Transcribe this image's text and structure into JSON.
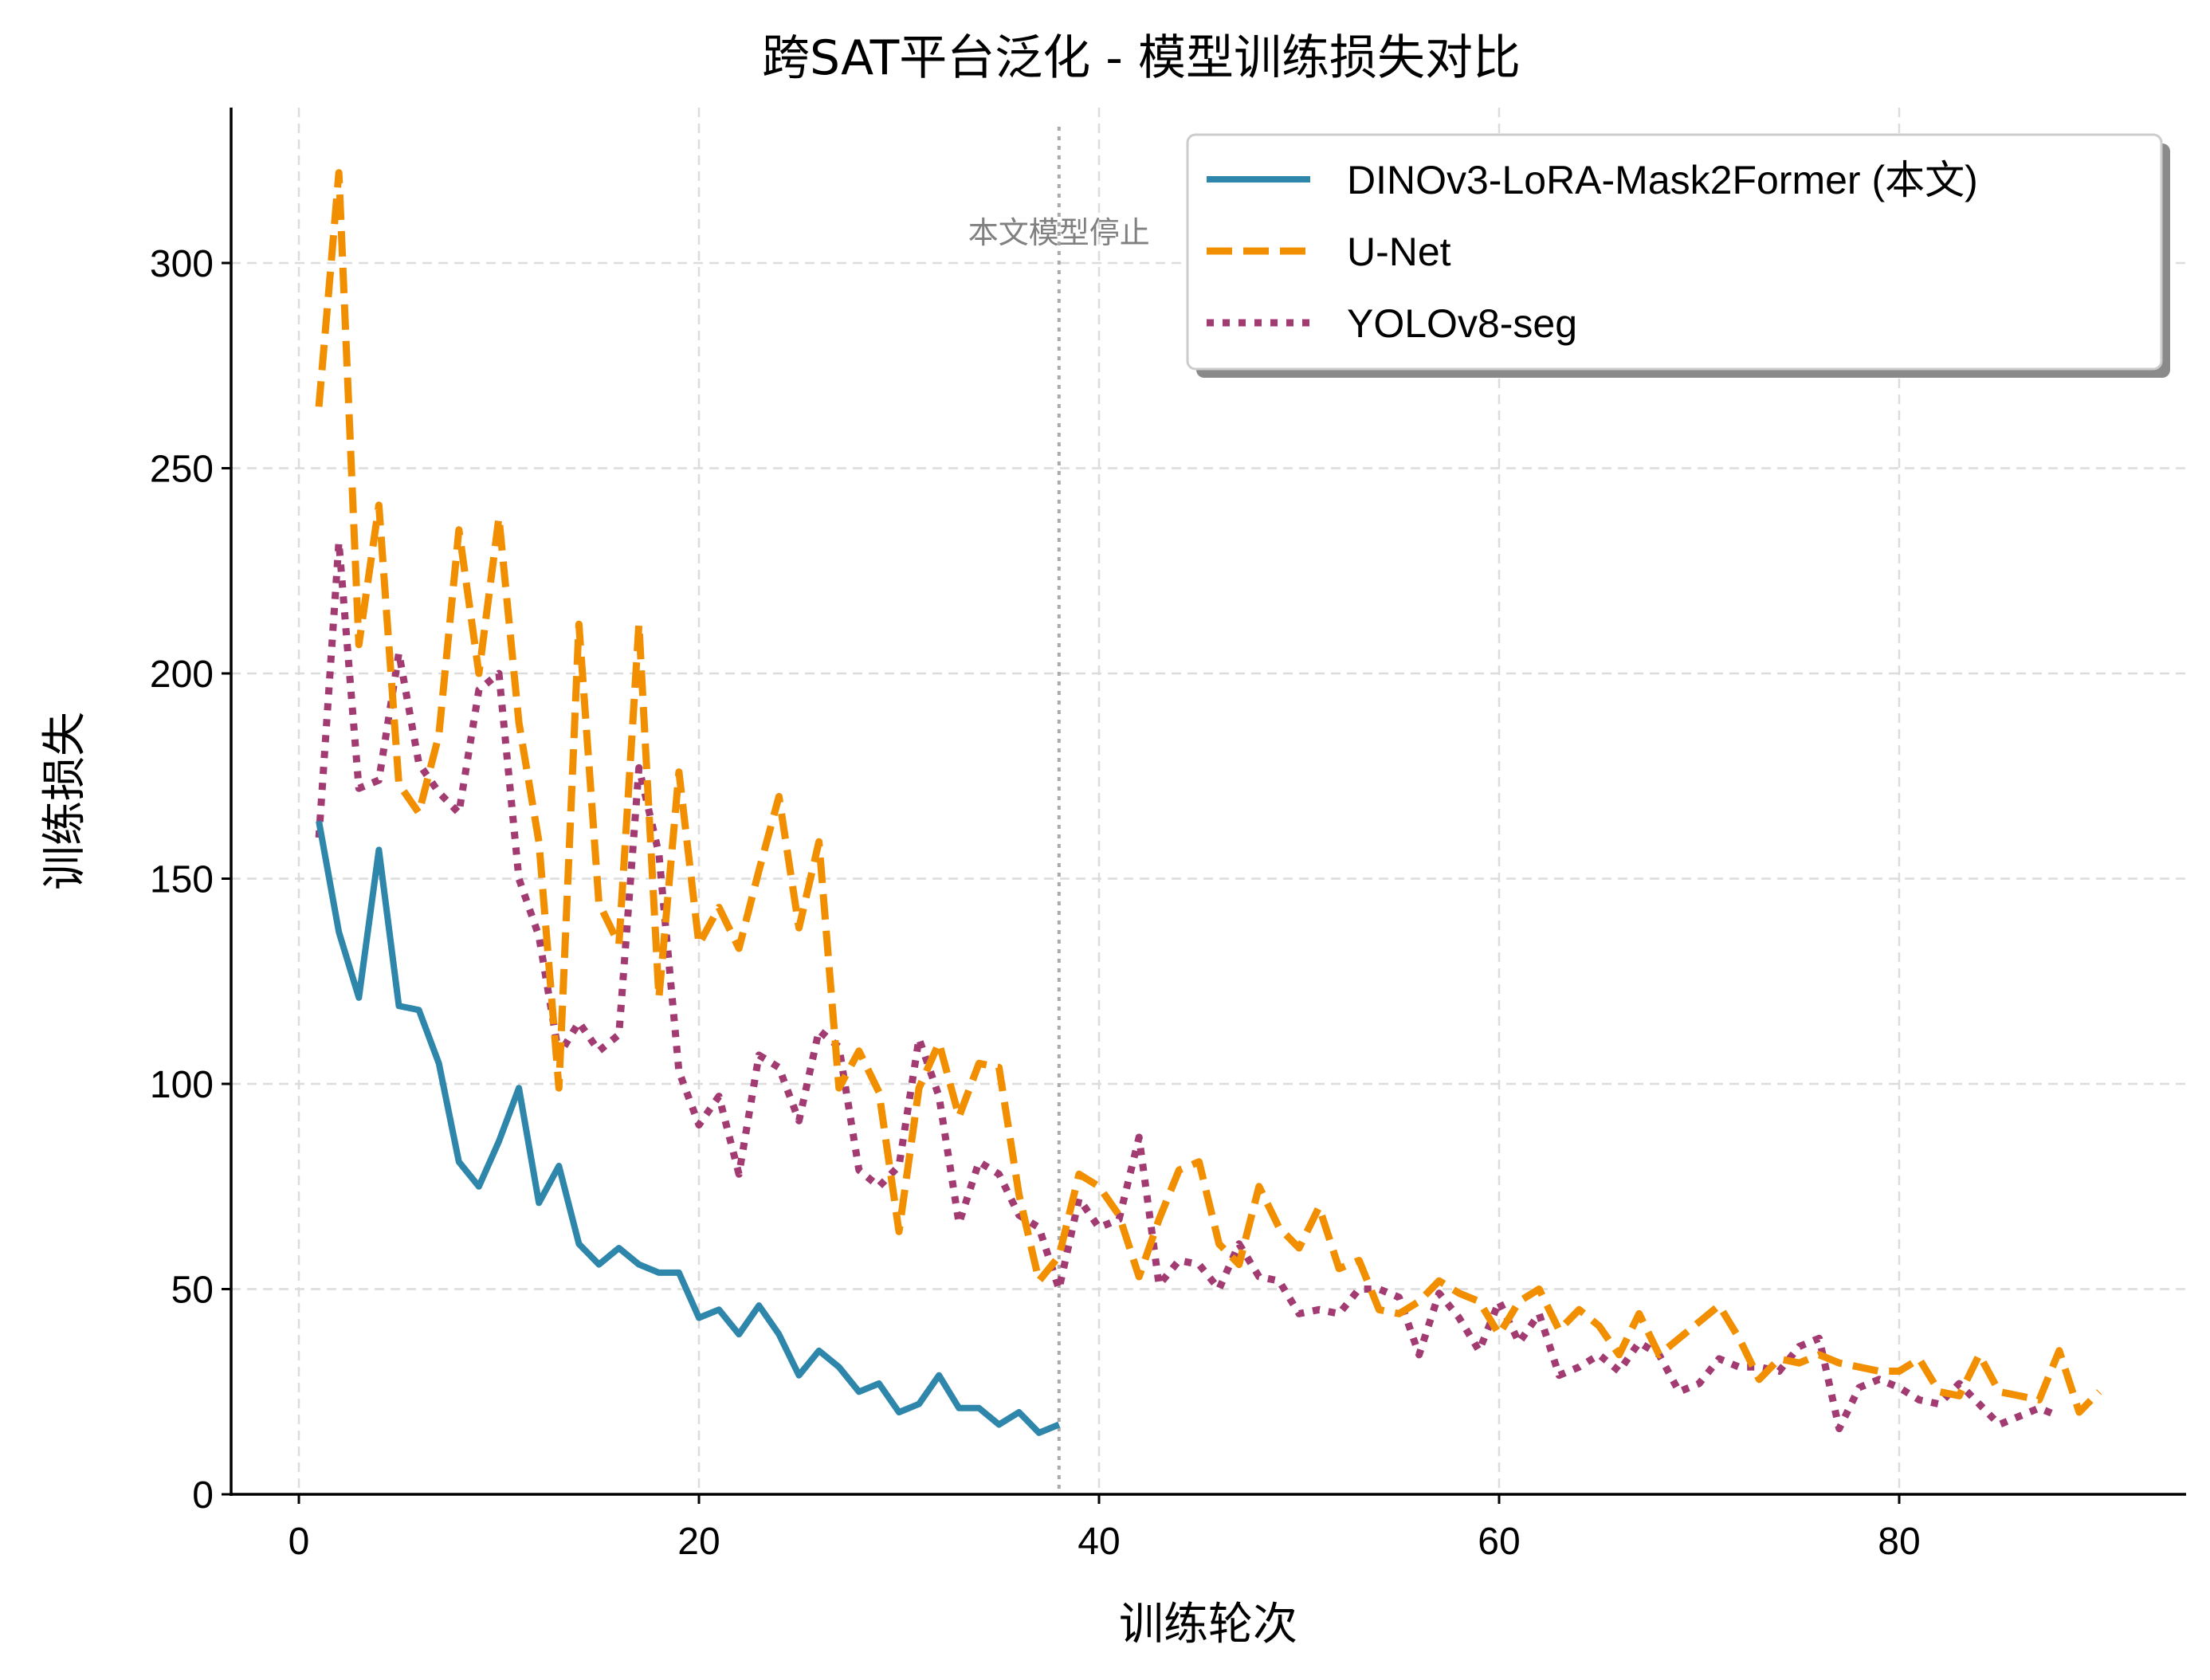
{
  "chart_data": {
    "type": "line",
    "title": "跨SAT平台泛化 - 模型训练损失对比",
    "xlabel": "训练轮次",
    "ylabel": "训练损失",
    "xlim": [
      -4,
      94
    ],
    "ylim": [
      0,
      340
    ],
    "xticks": [
      0,
      20,
      40,
      60,
      80
    ],
    "yticks": [
      0,
      50,
      100,
      150,
      200,
      250,
      300
    ],
    "grid": true,
    "legend_position": "upper right",
    "annotation": {
      "text": "本文模型停止",
      "x": 38
    },
    "series": [
      {
        "name": "DINOv3-LoRA-Mask2Former (本文)",
        "style": "solid",
        "color": "#2E86AB",
        "x": [
          1,
          2,
          3,
          4,
          5,
          6,
          7,
          8,
          9,
          10,
          11,
          12,
          13,
          14,
          15,
          16,
          17,
          18,
          19,
          20,
          21,
          22,
          23,
          24,
          25,
          26,
          27,
          28,
          29,
          30,
          31,
          32,
          33,
          34,
          35,
          36,
          37,
          38
        ],
        "y": [
          164,
          137,
          121,
          157,
          119,
          118,
          105,
          81,
          75,
          86,
          99,
          71,
          80,
          61,
          56,
          60,
          56,
          54,
          54,
          43,
          45,
          39,
          46,
          39,
          29,
          35,
          31,
          25,
          27,
          20,
          22,
          29,
          21,
          21,
          17,
          20,
          15,
          17
        ]
      },
      {
        "name": "U-Net",
        "style": "dashed",
        "color": "#F18F01",
        "x": [
          1,
          2,
          3,
          4,
          5,
          6,
          7,
          8,
          9,
          10,
          11,
          12,
          13,
          14,
          15,
          16,
          17,
          18,
          19,
          20,
          21,
          22,
          23,
          24,
          25,
          26,
          27,
          28,
          29,
          30,
          31,
          32,
          33,
          34,
          35,
          36,
          37,
          38,
          39,
          40,
          41,
          42,
          43,
          44,
          45,
          46,
          47,
          48,
          49,
          50,
          51,
          52,
          53,
          54,
          55,
          56,
          57,
          58,
          59,
          60,
          61,
          62,
          63,
          64,
          65,
          66,
          67,
          68,
          69,
          70,
          71,
          72,
          73,
          74,
          75,
          76,
          77,
          78,
          79,
          80,
          81,
          82,
          83,
          84,
          85,
          86,
          87,
          88,
          89,
          90
        ],
        "y": [
          265,
          322,
          207,
          241,
          173,
          166,
          185,
          235,
          200,
          238,
          188,
          159,
          99,
          212,
          144,
          134,
          212,
          121,
          176,
          134,
          143,
          133,
          152,
          170,
          138,
          159,
          99,
          108,
          98,
          64,
          99,
          110,
          92,
          105,
          104,
          73,
          52,
          58,
          78,
          75,
          68,
          53,
          67,
          79,
          81,
          61,
          56,
          75,
          65,
          60,
          70,
          55,
          57,
          45,
          44,
          47,
          52,
          49,
          47,
          39,
          47,
          50,
          40,
          45,
          41,
          34,
          44,
          34,
          38,
          42,
          46,
          38,
          28,
          33,
          32,
          34,
          32,
          31,
          30,
          30,
          33,
          25,
          24,
          34,
          25,
          24,
          23,
          35,
          20,
          25
        ]
      },
      {
        "name": "YOLOv8-seg",
        "style": "dotted",
        "color": "#A23B72",
        "x": [
          1,
          2,
          3,
          4,
          5,
          6,
          7,
          8,
          9,
          10,
          11,
          12,
          13,
          14,
          15,
          16,
          17,
          18,
          19,
          20,
          21,
          22,
          23,
          24,
          25,
          26,
          27,
          28,
          29,
          30,
          31,
          32,
          33,
          34,
          35,
          36,
          37,
          38,
          39,
          40,
          41,
          42,
          43,
          44,
          45,
          46,
          47,
          48,
          49,
          50,
          51,
          52,
          53,
          54,
          55,
          56,
          57,
          58,
          59,
          60,
          61,
          62,
          63,
          64,
          65,
          66,
          67,
          68,
          69,
          70,
          71,
          72,
          73,
          74,
          75,
          76,
          77,
          78,
          79,
          80,
          81,
          82,
          83,
          84,
          85,
          86,
          87,
          88
        ],
        "y": [
          160,
          232,
          172,
          174,
          205,
          178,
          171,
          166,
          196,
          200,
          150,
          136,
          107,
          115,
          108,
          112,
          177,
          156,
          103,
          90,
          97,
          78,
          107,
          104,
          91,
          113,
          109,
          79,
          75,
          80,
          111,
          97,
          66,
          81,
          78,
          68,
          65,
          50,
          72,
          65,
          67,
          87,
          51,
          57,
          56,
          50,
          61,
          53,
          52,
          44,
          45,
          44,
          50,
          50,
          48,
          34,
          49,
          43,
          35,
          47,
          37,
          44,
          29,
          31,
          34,
          30,
          37,
          34,
          25,
          27,
          33,
          31,
          31,
          30,
          36,
          38,
          16,
          26,
          28,
          26,
          23,
          22,
          27,
          22,
          17,
          19,
          21,
          19
        ]
      }
    ]
  }
}
